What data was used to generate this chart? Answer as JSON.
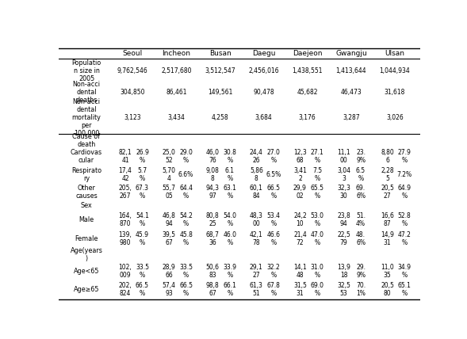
{
  "cities": [
    "Seoul",
    "Incheon",
    "Busan",
    "Daegu",
    "Daejeon",
    "Gwangju",
    "Ulsan"
  ],
  "figsize": [
    5.89,
    4.28
  ],
  "dpi": 100,
  "single_rows": [
    {
      "label": "Populatio\nn size in\n2005",
      "values": [
        "9,762,546",
        "2,517,680",
        "3,512,547",
        "2,456,016",
        "1,438,551",
        "1,413,644",
        "1,044,934"
      ]
    },
    {
      "label": "Non-acci\ndental\ndeaths",
      "values": [
        "304,850",
        "86,461",
        "149,561",
        "90,478",
        "45,682",
        "46,473",
        "31,618"
      ]
    },
    {
      "label": "Non-acci\ndental\nmortality\nper\n100,000",
      "values": [
        "3,123",
        "3,434",
        "4,258",
        "3,684",
        "3,176",
        "3,287",
        "3,026"
      ]
    }
  ],
  "cause_section_label": "Cause of\ndeath",
  "cause_rows": [
    {
      "label": "Cardiovas\ncular",
      "values": [
        [
          "82,1\n41",
          "26.9\n%"
        ],
        [
          "25,0\n52",
          "29.0\n%"
        ],
        [
          "46,0\n76",
          "30.8\n%"
        ],
        [
          "24,4\n26",
          "27.0\n%"
        ],
        [
          "12,3\n68",
          "27.1\n%"
        ],
        [
          "11,1\n00",
          "23.\n9%"
        ],
        [
          "8,80\n6",
          "27.9\n%"
        ]
      ]
    },
    {
      "label": "Respirato\nry",
      "values": [
        [
          "17,4\n42",
          "5.7\n%"
        ],
        [
          "5,70\n4",
          "6.6%"
        ],
        [
          "9,08\n8",
          "6.1\n%"
        ],
        [
          "5,86\n8",
          "6.5%"
        ],
        [
          "3,41\n2",
          "7.5\n%"
        ],
        [
          "3,04\n3",
          "6.5\n%"
        ],
        [
          "2,28\n5",
          "7.2%"
        ]
      ]
    },
    {
      "label": "Other\ncauses",
      "values": [
        [
          "205,\n267",
          "67.3\n%"
        ],
        [
          "55,7\n05",
          "64.4\n%"
        ],
        [
          "94,3\n97",
          "63.1\n%"
        ],
        [
          "60,1\n84",
          "66.5\n%"
        ],
        [
          "29,9\n02",
          "65.5\n%"
        ],
        [
          "32,3\n30",
          "69.\n6%"
        ],
        [
          "20,5\n27",
          "64.9\n%"
        ]
      ]
    }
  ],
  "sex_section_label": "Sex",
  "sex_rows": [
    {
      "label": "Male",
      "values": [
        [
          "164,\n870",
          "54.1\n%"
        ],
        [
          "46,8\n94",
          "54.2\n%"
        ],
        [
          "80,8\n25",
          "54.0\n%"
        ],
        [
          "48,3\n00",
          "53.4\n%"
        ],
        [
          "24,2\n10",
          "53.0\n%"
        ],
        [
          "23,8\n94",
          "51.\n4%"
        ],
        [
          "16,6\n87",
          "52.8\n%"
        ]
      ]
    },
    {
      "label": "Female",
      "values": [
        [
          "139,\n980",
          "45.9\n%"
        ],
        [
          "39,5\n67",
          "45.8\n%"
        ],
        [
          "68,7\n36",
          "46.0\n%"
        ],
        [
          "42,1\n78",
          "46.6\n%"
        ],
        [
          "21,4\n72",
          "47.0\n%"
        ],
        [
          "22,5\n79",
          "48.\n6%"
        ],
        [
          "14,9\n31",
          "47.2\n%"
        ]
      ]
    }
  ],
  "age_section_label": "Age(years\n)",
  "age_rows": [
    {
      "label": "Age<65",
      "values": [
        [
          "102,\n009",
          "33.5\n%"
        ],
        [
          "28,9\n66",
          "33.5\n%"
        ],
        [
          "50,6\n83",
          "33.9\n%"
        ],
        [
          "29,1\n27",
          "32.2\n%"
        ],
        [
          "14,1\n48",
          "31.0\n%"
        ],
        [
          "13,9\n18",
          "29.\n9%"
        ],
        [
          "11,0\n35",
          "34.9\n%"
        ]
      ]
    },
    {
      "label": "Age≥65",
      "values": [
        [
          "202,\n824",
          "66.5\n%"
        ],
        [
          "57,4\n93",
          "66.5\n%"
        ],
        [
          "98,8\n67",
          "66.1\n%"
        ],
        [
          "61,3\n51",
          "67.8\n%"
        ],
        [
          "31,5\n31",
          "69.0\n%"
        ],
        [
          "32,5\n53",
          "70.\n1%"
        ],
        [
          "20,5\n80",
          "65.1\n%"
        ]
      ]
    }
  ]
}
